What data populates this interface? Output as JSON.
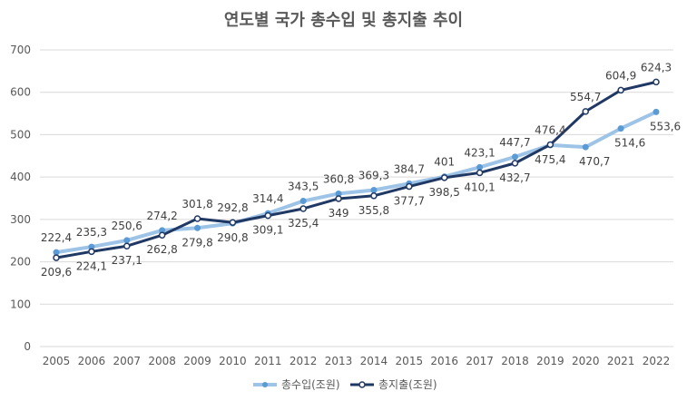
{
  "chart_data": {
    "type": "line",
    "title": "연도별 국가 총수입 및 총지출 추이",
    "xlabel": "",
    "ylabel": "",
    "ylim": [
      0,
      700
    ],
    "yticks": [
      0,
      100,
      200,
      300,
      400,
      500,
      600,
      700
    ],
    "grid": true,
    "legend_position": "bottom",
    "categories": [
      "2005",
      "2006",
      "2007",
      "2008",
      "2009",
      "2010",
      "2011",
      "2012",
      "2013",
      "2014",
      "2015",
      "2016",
      "2017",
      "2018",
      "2019",
      "2020",
      "2021",
      "2022"
    ],
    "series": [
      {
        "name": "총수입(조원)",
        "color": "#9dc3e6",
        "marker_color": "#5b9bd5",
        "values": [
          222.4,
          235.3,
          250.6,
          274.2,
          279.8,
          290.8,
          314.4,
          343.5,
          360.8,
          369.3,
          384.7,
          401,
          423.1,
          447.7,
          475.4,
          470.7,
          514.6,
          553.6
        ],
        "labels": [
          "222,4",
          "235,3",
          "250,6",
          "274,2",
          "279,8",
          "290,8",
          "314,4",
          "343,5",
          "360,8",
          "369,3",
          "384,7",
          "401",
          "423,1",
          "447,7",
          "475,4",
          "470,7",
          "514,6",
          "553,6"
        ]
      },
      {
        "name": "총지출(조원)",
        "color": "#203864",
        "marker_color": "#ffffff",
        "values": [
          209.6,
          224.1,
          237.1,
          262.8,
          301.8,
          292.8,
          309.1,
          325.4,
          349,
          355.8,
          377.7,
          398.5,
          410.1,
          432.7,
          476.4,
          554.7,
          604.9,
          624.3
        ],
        "labels": [
          "209,6",
          "224,1",
          "237,1",
          "262,8",
          "301,8",
          "292,8",
          "309,1",
          "325,4",
          "349",
          "355,8",
          "377,7",
          "398,5",
          "410,1",
          "432,7",
          "476,4",
          "554,7",
          "604,9",
          "624,3"
        ]
      }
    ]
  }
}
